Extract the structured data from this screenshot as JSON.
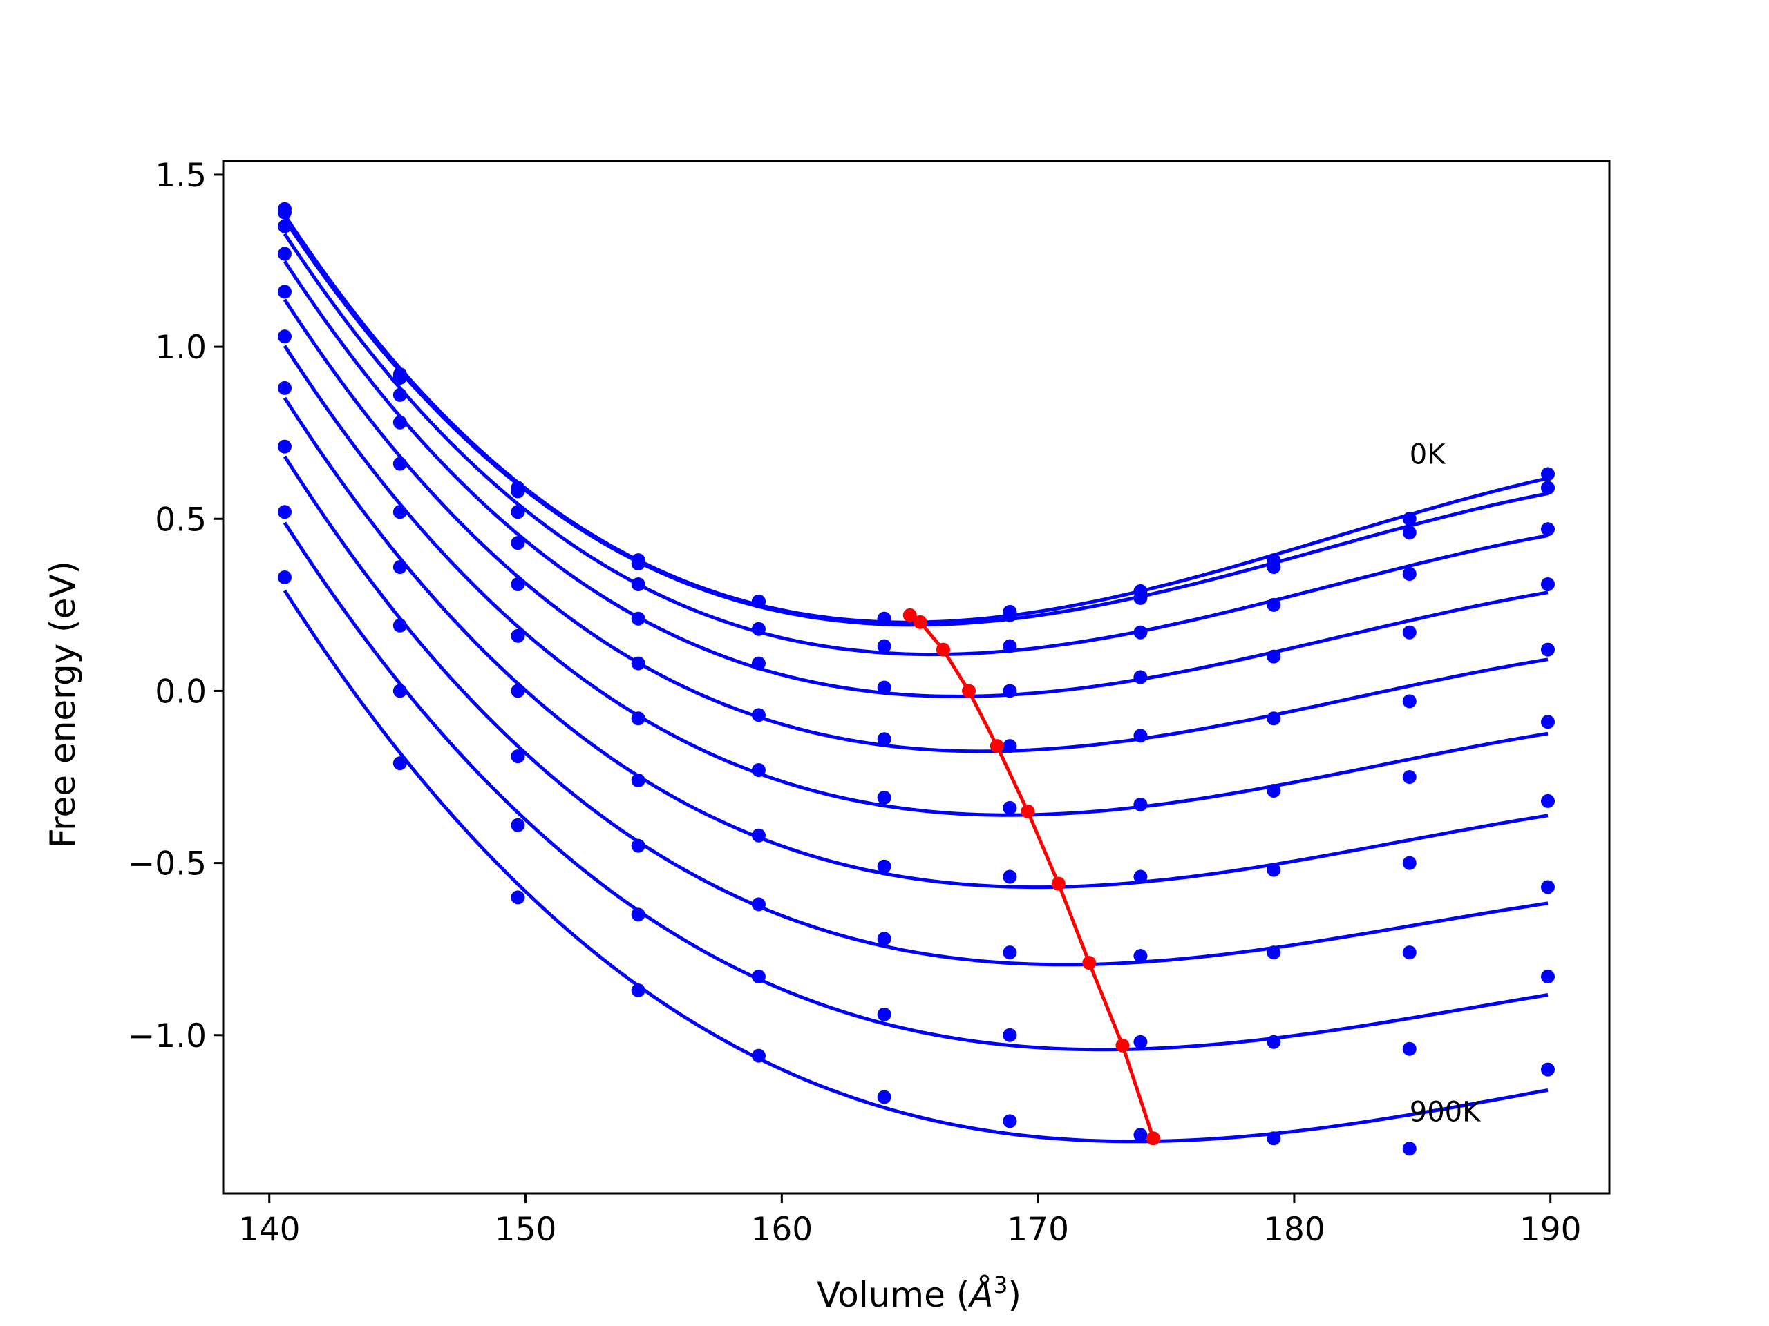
{
  "chart_data": {
    "type": "line",
    "title": "",
    "xlabel": "Volume ($Å^3$)",
    "xlabel_base": "Volume (",
    "xlabel_unit": "Å",
    "xlabel_exp": "3",
    "xlabel_close": ")",
    "ylabel": "Free energy (eV)",
    "xlim": [
      138.2,
      192.3
    ],
    "ylim": [
      -1.46,
      1.54
    ],
    "xticks": [
      140,
      150,
      160,
      170,
      180,
      190
    ],
    "xtick_labels": [
      "140",
      "150",
      "160",
      "170",
      "180",
      "190"
    ],
    "yticks": [
      -1.0,
      -0.5,
      0.0,
      0.5,
      1.0,
      1.5
    ],
    "ytick_labels": [
      "−1.0",
      "−0.5",
      "0.0",
      "0.5",
      "1.0",
      "1.5"
    ],
    "grid": false,
    "series_color": "#0000ff",
    "minima_color": "#ff0000",
    "volumes": [
      140.6,
      145.1,
      149.7,
      154.4,
      159.1,
      164.0,
      168.9,
      174.0,
      179.2,
      184.5,
      189.9
    ],
    "series": [
      {
        "points": [
          1.4,
          0.92,
          0.59,
          0.38,
          0.26,
          0.21,
          0.23,
          0.29,
          0.38,
          0.5,
          0.63
        ],
        "fit_range": [
          140.6,
          189.9
        ],
        "min": [
          165.0,
          0.22
        ]
      },
      {
        "points": [
          1.39,
          0.91,
          0.58,
          0.37,
          0.26,
          0.21,
          0.22,
          0.27,
          0.36,
          0.46,
          0.59
        ],
        "fit_range": [
          140.6,
          189.9
        ],
        "min": [
          165.4,
          0.2
        ]
      },
      {
        "points": [
          1.35,
          0.86,
          0.52,
          0.31,
          0.18,
          0.13,
          0.13,
          0.17,
          0.25,
          0.34,
          0.47
        ],
        "fit_range": [
          140.6,
          189.9
        ],
        "min": [
          166.3,
          0.12
        ]
      },
      {
        "points": [
          1.27,
          0.78,
          0.43,
          0.21,
          0.08,
          0.01,
          0.0,
          0.04,
          0.1,
          0.17,
          0.31
        ],
        "fit_range": [
          140.6,
          189.9
        ],
        "min": [
          167.3,
          0.0
        ]
      },
      {
        "points": [
          1.16,
          0.66,
          0.31,
          0.08,
          -0.07,
          -0.14,
          -0.16,
          -0.13,
          -0.08,
          -0.03,
          0.12
        ],
        "fit_range": [
          140.6,
          189.9
        ],
        "min": [
          168.4,
          -0.16
        ]
      },
      {
        "points": [
          1.03,
          0.52,
          0.16,
          -0.08,
          -0.23,
          -0.31,
          -0.34,
          -0.33,
          -0.29,
          -0.25,
          -0.09
        ],
        "fit_range": [
          140.6,
          189.9
        ],
        "min": [
          169.6,
          -0.35
        ]
      },
      {
        "points": [
          0.88,
          0.36,
          0.0,
          -0.26,
          -0.42,
          -0.51,
          -0.54,
          -0.54,
          -0.52,
          -0.5,
          -0.32
        ],
        "fit_range": [
          140.6,
          189.9
        ],
        "min": [
          170.8,
          -0.56
        ]
      },
      {
        "points": [
          0.71,
          0.19,
          -0.19,
          -0.45,
          -0.62,
          -0.72,
          -0.76,
          -0.77,
          -0.76,
          -0.76,
          -0.57
        ],
        "fit_range": [
          140.6,
          189.9
        ],
        "min": [
          172.0,
          -0.79
        ]
      },
      {
        "points": [
          0.52,
          0.0,
          -0.39,
          -0.65,
          -0.83,
          -0.94,
          -1.0,
          -1.02,
          -1.02,
          -1.04,
          -0.83
        ],
        "fit_range": [
          140.6,
          189.9
        ],
        "min": [
          173.3,
          -1.03
        ]
      },
      {
        "points": [
          0.33,
          -0.21,
          -0.6,
          -0.87,
          -1.06,
          -1.18,
          -1.25,
          -1.29,
          -1.3,
          -1.33,
          -1.1
        ],
        "fit_range": [
          140.6,
          189.9
        ],
        "min": [
          174.5,
          -1.3
        ]
      }
    ],
    "annotations": [
      {
        "text": "0K",
        "x": 184.5,
        "y": 0.66
      },
      {
        "text": "900K",
        "x": 184.5,
        "y": -1.25
      }
    ]
  }
}
